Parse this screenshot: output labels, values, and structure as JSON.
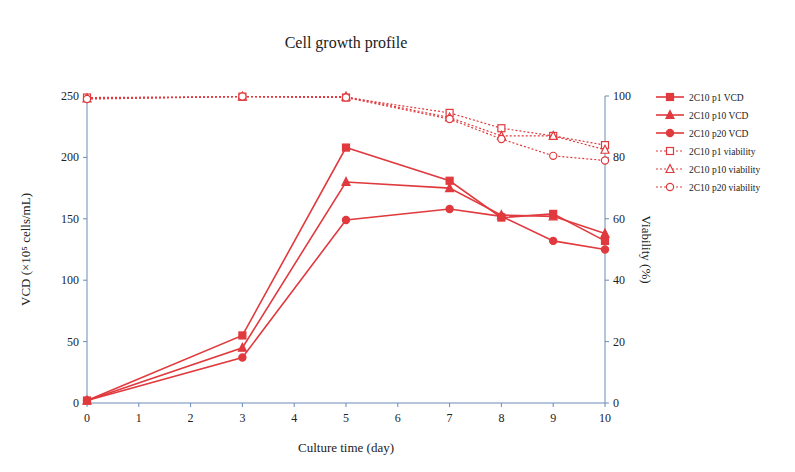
{
  "chart_data": {
    "type": "line",
    "title": "Cell growth profile",
    "x_label": "Culture time (day)",
    "y_label": "VCD (×10⁵ cells/mL)",
    "y2_label": "Viability (%)",
    "x": [
      0,
      3,
      5,
      7,
      8,
      9,
      10
    ],
    "xlim": [
      0,
      10
    ],
    "xticks": [
      0,
      1,
      2,
      3,
      4,
      5,
      6,
      7,
      8,
      9,
      10
    ],
    "ylim": [
      0,
      250
    ],
    "yticks": [
      0,
      50,
      100,
      150,
      200,
      250
    ],
    "y2lim": [
      0,
      100
    ],
    "y2ticks": [
      0,
      20,
      40,
      60,
      80,
      100
    ],
    "grid": false,
    "legend": "right",
    "series": [
      {
        "name": "2C10 p1 VCD",
        "color": "#e03a3e",
        "marker": "square",
        "line_style": "solid",
        "values": [
          2,
          55,
          208,
          181,
          151,
          154,
          132
        ]
      },
      {
        "name": "2C10 p10 VCD",
        "color": "#e03a3e",
        "marker": "triangle",
        "line_style": "solid",
        "values": [
          2,
          45,
          180,
          175,
          153,
          152,
          138
        ]
      },
      {
        "name": "2C10 p20 VCD",
        "color": "#e03a3e",
        "marker": "circle",
        "line_style": "solid",
        "values": [
          2,
          37,
          149,
          158,
          152,
          132,
          125
        ]
      },
      {
        "name": "2C10 p1 viability",
        "color": "#e03a3e",
        "marker": "square-open",
        "line_style": "dotted",
        "axis": "y2",
        "values": [
          99.5,
          99.8,
          99.5,
          94.5,
          89.5,
          87,
          84
        ]
      },
      {
        "name": "2C10 p10 viability",
        "color": "#e03a3e",
        "marker": "triangle-open",
        "line_style": "dotted",
        "axis": "y2",
        "values": [
          99.2,
          99.8,
          99.8,
          93,
          87,
          87,
          82.5
        ]
      },
      {
        "name": "2C10 p20 viability",
        "color": "#e03a3e",
        "marker": "circle-open",
        "line_style": "dotted",
        "axis": "y2",
        "values": [
          99,
          99.8,
          99.5,
          92.5,
          86,
          80.5,
          79
        ]
      }
    ]
  }
}
